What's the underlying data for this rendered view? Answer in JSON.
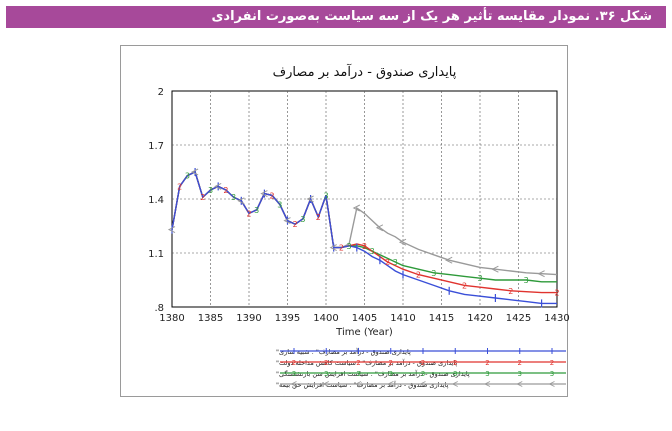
{
  "caption": "شکل ۳۶. نمودار مقایسه تأثیر هر یک از سه سیاست به‌صورت انفرادی",
  "chart_data": {
    "type": "line",
    "title": "پایداری صندوق - درآمد بر مصارف",
    "xlabel": "Time (Year)",
    "ylabel": "",
    "xlim": [
      1380,
      1430
    ],
    "ylim": [
      0.8,
      2.0
    ],
    "y_ticks": [
      "2",
      "1.7",
      "1.4",
      "1.1",
      ".8"
    ],
    "x_ticks": [
      "1380",
      "1385",
      "1390",
      "1395",
      "1400",
      "1405",
      "1410",
      "1415",
      "1420",
      "1425",
      "1430"
    ],
    "grid": true,
    "series": [
      {
        "name": "پایداری صندوق - درآمد بر مصارف\" : شبیه سازی\"",
        "marker": "1",
        "color": "#3a4fd8",
        "x": [
          1380,
          1381,
          1382,
          1383,
          1384,
          1385,
          1386,
          1387,
          1388,
          1389,
          1390,
          1391,
          1392,
          1393,
          1394,
          1395,
          1396,
          1397,
          1398,
          1399,
          1400,
          1401,
          1402,
          1403,
          1404,
          1405,
          1406,
          1407,
          1408,
          1409,
          1410,
          1412,
          1414,
          1416,
          1418,
          1420,
          1422,
          1424,
          1426,
          1428,
          1430
        ],
        "y": [
          1.23,
          1.47,
          1.53,
          1.55,
          1.41,
          1.45,
          1.47,
          1.45,
          1.41,
          1.39,
          1.32,
          1.34,
          1.43,
          1.42,
          1.37,
          1.28,
          1.26,
          1.29,
          1.4,
          1.3,
          1.42,
          1.13,
          1.13,
          1.14,
          1.13,
          1.11,
          1.08,
          1.06,
          1.03,
          1.0,
          0.98,
          0.95,
          0.92,
          0.89,
          0.87,
          0.86,
          0.85,
          0.84,
          0.83,
          0.82,
          0.82
        ]
      },
      {
        "name": "پایداری صندوق - درآمد بر مصارف\" : سیاست کاهش مداخله دولت\"",
        "marker": "2",
        "color": "#e0332e",
        "x": [
          1380,
          1381,
          1382,
          1383,
          1384,
          1385,
          1386,
          1387,
          1388,
          1389,
          1390,
          1391,
          1392,
          1393,
          1394,
          1395,
          1396,
          1397,
          1398,
          1399,
          1400,
          1401,
          1402,
          1403,
          1404,
          1405,
          1406,
          1407,
          1408,
          1409,
          1410,
          1412,
          1414,
          1416,
          1418,
          1420,
          1422,
          1424,
          1426,
          1428,
          1430
        ],
        "y": [
          1.23,
          1.47,
          1.53,
          1.55,
          1.41,
          1.45,
          1.47,
          1.45,
          1.41,
          1.39,
          1.32,
          1.34,
          1.43,
          1.42,
          1.37,
          1.28,
          1.26,
          1.29,
          1.4,
          1.3,
          1.42,
          1.13,
          1.13,
          1.14,
          1.15,
          1.14,
          1.11,
          1.08,
          1.05,
          1.03,
          1.01,
          0.98,
          0.96,
          0.94,
          0.92,
          0.91,
          0.9,
          0.89,
          0.885,
          0.88,
          0.88
        ]
      },
      {
        "name": "پایداری صندوق - درآمد بر مصارف\" : سیاست افزایش سن بازنشستگی\"",
        "marker": "3",
        "color": "#2e9a3a",
        "x": [
          1380,
          1381,
          1382,
          1383,
          1384,
          1385,
          1386,
          1387,
          1388,
          1389,
          1390,
          1391,
          1392,
          1393,
          1394,
          1395,
          1396,
          1397,
          1398,
          1399,
          1400,
          1401,
          1402,
          1403,
          1404,
          1405,
          1406,
          1407,
          1408,
          1409,
          1410,
          1412,
          1414,
          1416,
          1418,
          1420,
          1422,
          1424,
          1426,
          1428,
          1430
        ],
        "y": [
          1.23,
          1.47,
          1.53,
          1.55,
          1.41,
          1.45,
          1.47,
          1.45,
          1.41,
          1.39,
          1.32,
          1.34,
          1.43,
          1.42,
          1.37,
          1.28,
          1.26,
          1.29,
          1.4,
          1.3,
          1.42,
          1.13,
          1.13,
          1.14,
          1.14,
          1.13,
          1.11,
          1.09,
          1.07,
          1.05,
          1.03,
          1.01,
          0.99,
          0.98,
          0.97,
          0.96,
          0.95,
          0.95,
          0.95,
          0.94,
          0.94
        ]
      },
      {
        "name": "پایداری صندوق - درآمد بر مصارف\" : سیاست افزایش حق بیمه\"",
        "marker": "4",
        "color": "#9a9a9a",
        "x": [
          1380,
          1381,
          1382,
          1383,
          1384,
          1385,
          1386,
          1387,
          1388,
          1389,
          1390,
          1391,
          1392,
          1393,
          1394,
          1395,
          1396,
          1397,
          1398,
          1399,
          1400,
          1401,
          1402,
          1403,
          1404,
          1405,
          1406,
          1407,
          1408,
          1409,
          1410,
          1412,
          1414,
          1416,
          1418,
          1420,
          1422,
          1424,
          1426,
          1428,
          1430
        ],
        "y": [
          1.23,
          1.47,
          1.53,
          1.55,
          1.41,
          1.45,
          1.47,
          1.45,
          1.41,
          1.39,
          1.32,
          1.34,
          1.43,
          1.42,
          1.37,
          1.28,
          1.26,
          1.29,
          1.4,
          1.3,
          1.42,
          1.13,
          1.13,
          1.15,
          1.35,
          1.32,
          1.28,
          1.24,
          1.21,
          1.19,
          1.16,
          1.12,
          1.09,
          1.06,
          1.04,
          1.02,
          1.01,
          1.0,
          0.99,
          0.985,
          0.98
        ]
      }
    ]
  }
}
